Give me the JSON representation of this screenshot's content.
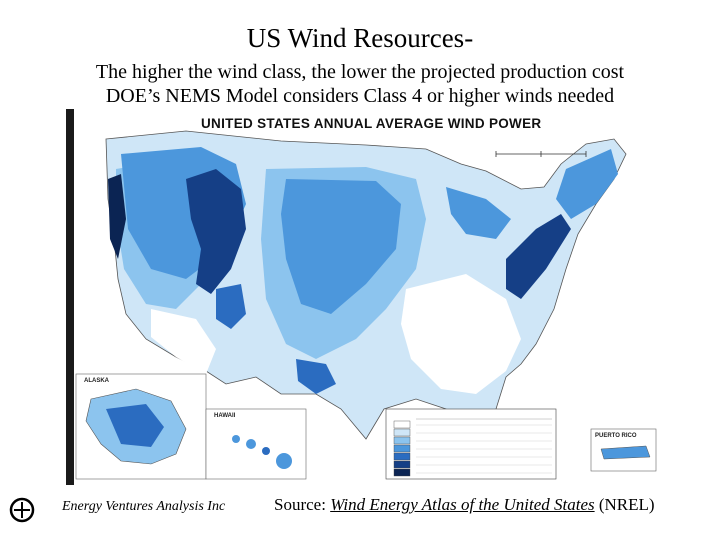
{
  "slide": {
    "title": "US Wind Resources-",
    "subtitle_line1": "The higher the wind class, the lower the projected production cost",
    "subtitle_line2": "DOE’s NEMS Model considers Class 4 or higher winds needed"
  },
  "map": {
    "title": "UNITED STATES ANNUAL AVERAGE WIND POWER",
    "inset_alaska": "ALASKA",
    "inset_hawaii": "HAWAII",
    "inset_puerto_rico": "PUERTO RICO",
    "colors": {
      "class_1": "#ffffff",
      "class_2": "#cfe6f7",
      "class_3": "#8cc4ee",
      "class_4": "#4c97dc",
      "class_5": "#2b6cc0",
      "class_6": "#153f86",
      "class_7": "#0b2453"
    }
  },
  "footer": {
    "organization": "Energy Ventures Analysis Inc",
    "source_prefix": "Source: ",
    "source_title": "Wind Energy Atlas of the United States",
    "source_suffix": " (NREL)"
  }
}
